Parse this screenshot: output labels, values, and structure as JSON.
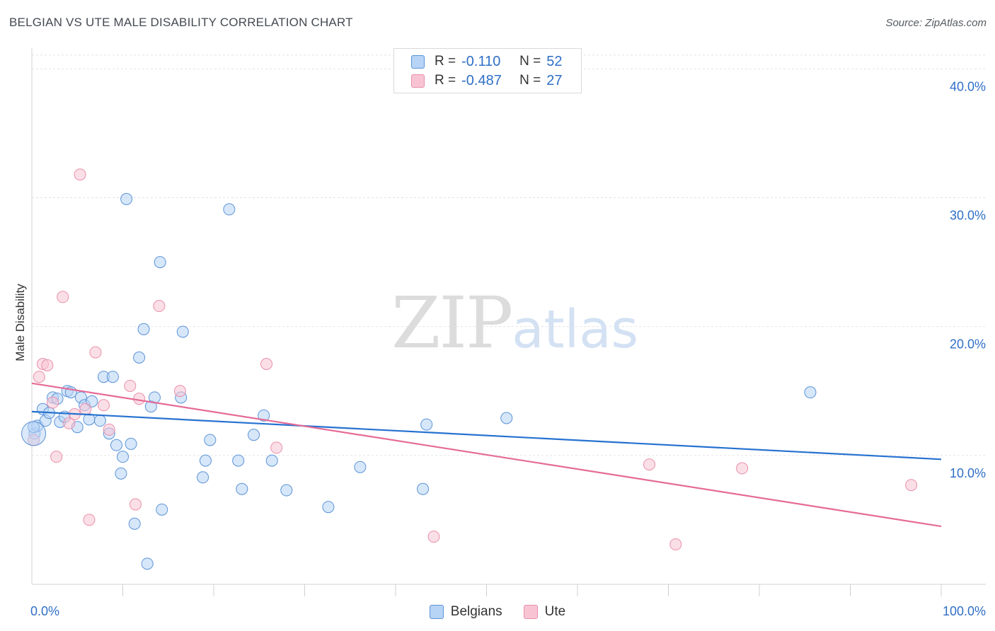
{
  "header": {
    "title": "BELGIAN VS UTE MALE DISABILITY CORRELATION CHART",
    "source": "Source: ZipAtlas.com"
  },
  "watermark": {
    "zip": "ZIP",
    "atlas": "atlas"
  },
  "legend": {
    "r_label": "R =",
    "n_label": "N =",
    "rows": [
      {
        "r": "-0.110",
        "n": "52"
      },
      {
        "r": "-0.487",
        "n": "27"
      }
    ]
  },
  "colors": {
    "belgians_fill": "#b7d3f5",
    "belgians_stroke": "#5b93d6",
    "belgians_line": "#2672d0",
    "ute_fill": "#f8c4d4",
    "ute_stroke": "#e98fab",
    "ute_line": "#e56b97",
    "value_text": "#2f6fc6"
  },
  "chart_data": {
    "type": "scatter",
    "title": "BELGIAN VS UTE MALE DISABILITY CORRELATION CHART",
    "ylabel": "Male Disability",
    "xlabel": "",
    "xlim": [
      0,
      100
    ],
    "ylim": [
      0,
      41.5
    ],
    "x_tick_labels": [
      "0.0%",
      "100.0%"
    ],
    "y_ticks": [
      10,
      20,
      30,
      40
    ],
    "y_tick_labels": [
      "10.0%",
      "20.0%",
      "30.0%",
      "40.0%"
    ],
    "grid": true,
    "legend_position": "top-center",
    "series": [
      {
        "name": "Belgians",
        "r": -0.11,
        "n": 52,
        "trend": [
          [
            0,
            13.4
          ],
          [
            100,
            9.7
          ]
        ],
        "points": [
          [
            0.3,
            11.7
          ],
          [
            0.6,
            12.3
          ],
          [
            1.2,
            13.6
          ],
          [
            1.5,
            12.7
          ],
          [
            1.9,
            13.3
          ],
          [
            2.3,
            14.5
          ],
          [
            2.8,
            14.4
          ],
          [
            3.1,
            12.6
          ],
          [
            3.6,
            13.0
          ],
          [
            3.9,
            15.0
          ],
          [
            4.3,
            14.9
          ],
          [
            5.0,
            12.2
          ],
          [
            5.4,
            14.5
          ],
          [
            5.8,
            13.9
          ],
          [
            6.3,
            12.8
          ],
          [
            6.6,
            14.2
          ],
          [
            7.5,
            12.7
          ],
          [
            7.9,
            16.1
          ],
          [
            8.5,
            11.7
          ],
          [
            8.9,
            16.1
          ],
          [
            9.3,
            10.8
          ],
          [
            9.8,
            8.6
          ],
          [
            10.0,
            9.9
          ],
          [
            10.4,
            29.9
          ],
          [
            10.9,
            10.9
          ],
          [
            11.3,
            4.7
          ],
          [
            11.8,
            17.6
          ],
          [
            12.3,
            19.8
          ],
          [
            12.7,
            1.6
          ],
          [
            13.1,
            13.8
          ],
          [
            13.5,
            14.5
          ],
          [
            14.1,
            25.0
          ],
          [
            14.3,
            5.8
          ],
          [
            16.4,
            14.5
          ],
          [
            16.6,
            19.6
          ],
          [
            18.8,
            8.3
          ],
          [
            19.1,
            9.6
          ],
          [
            19.6,
            11.2
          ],
          [
            21.7,
            29.1
          ],
          [
            22.7,
            9.6
          ],
          [
            23.1,
            7.4
          ],
          [
            24.4,
            11.6
          ],
          [
            25.5,
            13.1
          ],
          [
            26.4,
            9.6
          ],
          [
            28.0,
            7.3
          ],
          [
            32.6,
            6.0
          ],
          [
            36.1,
            9.1
          ],
          [
            43.0,
            7.4
          ],
          [
            43.4,
            12.4
          ],
          [
            52.2,
            12.9
          ],
          [
            85.6,
            14.9
          ],
          [
            0.2,
            12.2
          ]
        ]
      },
      {
        "name": "Ute",
        "r": -0.487,
        "n": 27,
        "trend": [
          [
            0,
            15.6
          ],
          [
            100,
            4.5
          ]
        ],
        "points": [
          [
            0.2,
            11.2
          ],
          [
            0.8,
            16.1
          ],
          [
            1.2,
            17.1
          ],
          [
            1.7,
            17.0
          ],
          [
            2.3,
            14.1
          ],
          [
            2.7,
            9.9
          ],
          [
            3.4,
            22.3
          ],
          [
            4.1,
            12.5
          ],
          [
            4.7,
            13.2
          ],
          [
            5.3,
            31.8
          ],
          [
            5.9,
            13.6
          ],
          [
            6.3,
            5.0
          ],
          [
            7.0,
            18.0
          ],
          [
            7.9,
            13.9
          ],
          [
            8.5,
            12.0
          ],
          [
            10.8,
            15.4
          ],
          [
            11.4,
            6.2
          ],
          [
            11.8,
            14.4
          ],
          [
            14.0,
            21.6
          ],
          [
            16.3,
            15.0
          ],
          [
            25.8,
            17.1
          ],
          [
            26.9,
            10.6
          ],
          [
            44.2,
            3.7
          ],
          [
            67.9,
            9.3
          ],
          [
            70.8,
            3.1
          ],
          [
            78.1,
            9.0
          ],
          [
            96.7,
            7.7
          ]
        ]
      }
    ]
  }
}
